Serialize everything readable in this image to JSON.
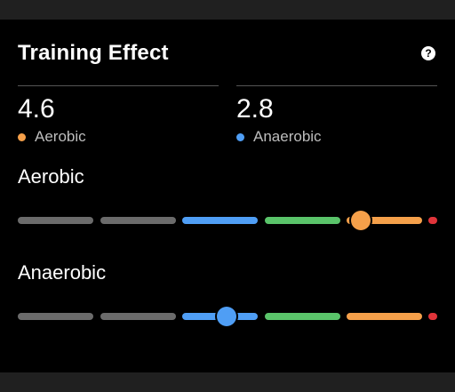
{
  "card": {
    "title": "Training Effect",
    "help_icon": "?"
  },
  "stats": [
    {
      "value": "4.6",
      "label": "Aerobic",
      "color": "#f5a04a"
    },
    {
      "value": "2.8",
      "label": "Anaerobic",
      "color": "#4f9ef5"
    }
  ],
  "gauges": [
    {
      "title": "Aerobic",
      "level": 4.6,
      "color": "#f5a04a"
    },
    {
      "title": "Anaerobic",
      "level": 2.8,
      "color": "#4f9ef5"
    }
  ],
  "scale": {
    "min": 0,
    "max": 5,
    "zone_colors": [
      "#6b6b6b",
      "#6b6b6b",
      "#4f9ef5",
      "#5ac46a",
      "#f5a04a",
      "#e0343a"
    ]
  }
}
